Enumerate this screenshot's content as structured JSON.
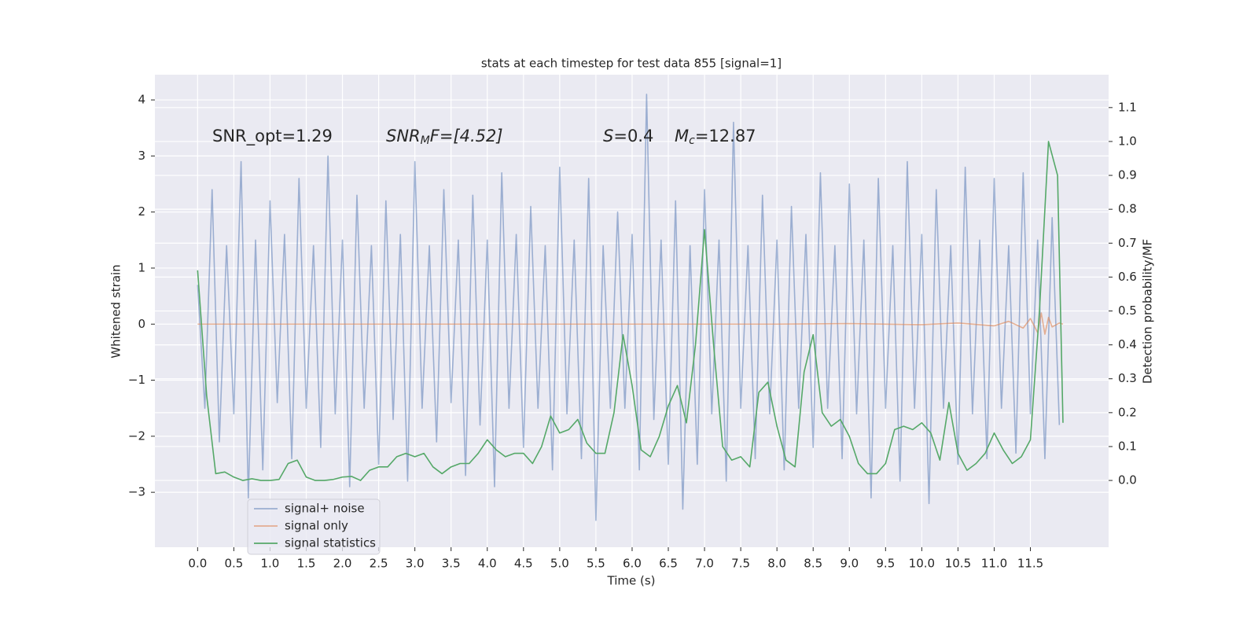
{
  "chart_data": {
    "type": "line",
    "title": "stats at each timestep for test data 855 [signal=1]",
    "xlabel": "Time (s)",
    "ylabel": "Whitened strain",
    "y2label": "Detection probability/MF",
    "annotations": {
      "snr_opt": "SNR_opt=1.29",
      "snr_mf": [
        "SNR",
        "M",
        "F=[4.52]"
      ],
      "s": [
        "S",
        "=0.4"
      ],
      "mc": [
        "M",
        "c",
        "=12.87"
      ]
    },
    "xlim": [
      -0.59,
      12.58
    ],
    "ylim": [
      -3.98,
      4.45
    ],
    "y2lim": [
      -0.197,
      1.197
    ],
    "xticks": [
      {
        "value": 0,
        "label": "0.0"
      },
      0.5,
      {
        "value": 1,
        "label": "1.0"
      },
      1.5,
      {
        "value": 2,
        "label": "2.0"
      },
      2.5,
      {
        "value": 3,
        "label": "3.0"
      },
      3.5,
      {
        "value": 4,
        "label": "4.0"
      },
      4.5,
      {
        "value": 5,
        "label": "5.0"
      },
      5.5,
      {
        "value": 6,
        "label": "6.0"
      },
      6.5,
      {
        "value": 7,
        "label": "7.0"
      },
      7.5,
      {
        "value": 8,
        "label": "8.0"
      },
      8.5,
      {
        "value": 9,
        "label": "9.0"
      },
      9.5,
      {
        "value": 10,
        "label": "10.0"
      },
      10.5,
      {
        "value": 11,
        "label": "11.0"
      },
      11.5
    ],
    "yticks": [
      {
        "value": -3,
        "label": "−3"
      },
      {
        "value": -2,
        "label": "−2"
      },
      {
        "value": -1,
        "label": "−1"
      },
      0,
      1,
      2,
      3,
      4
    ],
    "y2ticks": [
      {
        "value": 0,
        "label": "0.0"
      },
      0.1,
      0.2,
      0.3,
      0.4,
      0.5,
      0.6,
      0.7,
      0.8,
      0.9,
      {
        "value": 1,
        "label": "1.0"
      },
      1.1
    ],
    "grid": true,
    "legend": "lower left",
    "series": [
      {
        "name": "signal+ noise",
        "color": "#4c72b0",
        "opacity": 0.5,
        "x": [
          0,
          0.1,
          0.2,
          0.3,
          0.4,
          0.5,
          0.6,
          0.7,
          0.8,
          0.9,
          1,
          1.1,
          1.2,
          1.3,
          1.4,
          1.5,
          1.6,
          1.7,
          1.8,
          1.9,
          2,
          2.1,
          2.2,
          2.3,
          2.4,
          2.5,
          2.6,
          2.7,
          2.8,
          2.9,
          3,
          3.1,
          3.2,
          3.3,
          3.4,
          3.5,
          3.6,
          3.7,
          3.8,
          3.9,
          4,
          4.1,
          4.2,
          4.3,
          4.4,
          4.5,
          4.6,
          4.7,
          4.8,
          4.9,
          5,
          5.1,
          5.2,
          5.3,
          5.4,
          5.5,
          5.6,
          5.7,
          5.8,
          5.9,
          6,
          6.1,
          6.2,
          6.3,
          6.4,
          6.5,
          6.6,
          6.7,
          6.8,
          6.9,
          7,
          7.1,
          7.2,
          7.3,
          7.4,
          7.5,
          7.6,
          7.7,
          7.8,
          7.9,
          8,
          8.1,
          8.2,
          8.3,
          8.4,
          8.5,
          8.6,
          8.7,
          8.8,
          8.9,
          9,
          9.1,
          9.2,
          9.3,
          9.4,
          9.5,
          9.6,
          9.7,
          9.8,
          9.9,
          10,
          10.1,
          10.2,
          10.3,
          10.4,
          10.5,
          10.6,
          10.7,
          10.8,
          10.9,
          11,
          11.1,
          11.2,
          11.3,
          11.4,
          11.5,
          11.6,
          11.7,
          11.8,
          11.9
        ],
        "values": [
          0.7,
          -1.5,
          2.4,
          -2.1,
          1.4,
          -1.6,
          2.9,
          -3.1,
          1.5,
          -2.6,
          2.2,
          -1.4,
          1.6,
          -2.4,
          2.6,
          -1.5,
          1.4,
          -2.2,
          3.0,
          -1.6,
          1.5,
          -2.9,
          2.3,
          -1.5,
          1.4,
          -2.5,
          2.2,
          -1.7,
          1.6,
          -2.8,
          2.9,
          -1.5,
          1.4,
          -2.1,
          2.4,
          -1.4,
          1.5,
          -2.7,
          2.3,
          -1.8,
          1.5,
          -2.9,
          2.7,
          -1.5,
          1.6,
          -2.2,
          2.1,
          -1.5,
          1.4,
          -2.6,
          2.8,
          -1.6,
          1.5,
          -2.4,
          2.6,
          -3.5,
          1.4,
          -1.5,
          2.0,
          -1.5,
          1.6,
          -2.6,
          4.1,
          -1.7,
          1.5,
          -2.5,
          2.2,
          -3.3,
          1.4,
          -2.5,
          2.4,
          -1.6,
          1.5,
          -2.8,
          3.6,
          -1.5,
          1.4,
          -2.4,
          2.3,
          -1.6,
          1.5,
          -2.6,
          2.1,
          -1.5,
          1.6,
          -2.2,
          2.7,
          -1.5,
          1.4,
          -2.4,
          2.5,
          -1.6,
          1.5,
          -3.1,
          2.6,
          -1.5,
          1.4,
          -2.8,
          2.9,
          -1.5,
          1.6,
          -3.2,
          2.4,
          -1.5,
          1.4,
          -2.5,
          2.8,
          -1.6,
          1.5,
          -2.4,
          2.6,
          -1.5,
          1.4,
          -2.3,
          2.7,
          -1.6,
          1.5,
          -2.4,
          1.9,
          -1.8
        ]
      },
      {
        "name": "signal only",
        "color": "#dd8452",
        "opacity": 0.6,
        "x": [
          0,
          2,
          4,
          6,
          8,
          9,
          10,
          10.5,
          11,
          11.2,
          11.4,
          11.5,
          11.6,
          11.65,
          11.7,
          11.75,
          11.8,
          11.9,
          11.95
        ],
        "values": [
          0,
          0,
          0,
          0,
          0,
          0.01,
          -0.01,
          0.02,
          -0.03,
          0.05,
          -0.07,
          0.1,
          -0.15,
          0.2,
          -0.18,
          0.12,
          -0.05,
          0.02,
          0
        ]
      },
      {
        "name": "signal statistics",
        "color": "#55a868",
        "opacity": 1,
        "axis": "y2",
        "x": [
          0,
          0.125,
          0.25,
          0.375,
          0.5,
          0.625,
          0.75,
          0.875,
          1,
          1.125,
          1.25,
          1.375,
          1.5,
          1.625,
          1.75,
          1.875,
          2,
          2.125,
          2.25,
          2.375,
          2.5,
          2.625,
          2.75,
          2.875,
          3,
          3.125,
          3.25,
          3.375,
          3.5,
          3.625,
          3.75,
          3.875,
          4,
          4.125,
          4.25,
          4.375,
          4.5,
          4.625,
          4.75,
          4.875,
          5,
          5.125,
          5.25,
          5.375,
          5.5,
          5.625,
          5.75,
          5.875,
          6,
          6.125,
          6.25,
          6.375,
          6.5,
          6.625,
          6.75,
          6.875,
          7,
          7.125,
          7.25,
          7.375,
          7.5,
          7.625,
          7.75,
          7.875,
          8,
          8.125,
          8.25,
          8.375,
          8.5,
          8.625,
          8.75,
          8.875,
          9,
          9.125,
          9.25,
          9.375,
          9.5,
          9.625,
          9.75,
          9.875,
          10,
          10.125,
          10.25,
          10.375,
          10.5,
          10.625,
          10.75,
          10.875,
          11,
          11.125,
          11.25,
          11.375,
          11.5,
          11.625,
          11.75,
          11.875,
          11.95
        ],
        "values": [
          0.62,
          0.25,
          0.02,
          0.025,
          0.01,
          0.0,
          0.005,
          0.0,
          0.0,
          0.003,
          0.05,
          0.06,
          0.01,
          0.0,
          0.0,
          0.003,
          0.01,
          0.012,
          0.0,
          0.03,
          0.04,
          0.04,
          0.07,
          0.08,
          0.07,
          0.08,
          0.04,
          0.02,
          0.04,
          0.05,
          0.05,
          0.08,
          0.12,
          0.09,
          0.07,
          0.08,
          0.08,
          0.05,
          0.1,
          0.19,
          0.14,
          0.15,
          0.18,
          0.11,
          0.08,
          0.08,
          0.2,
          0.43,
          0.28,
          0.09,
          0.07,
          0.13,
          0.22,
          0.28,
          0.17,
          0.4,
          0.74,
          0.4,
          0.1,
          0.06,
          0.07,
          0.04,
          0.26,
          0.29,
          0.16,
          0.06,
          0.04,
          0.32,
          0.43,
          0.2,
          0.16,
          0.18,
          0.13,
          0.05,
          0.02,
          0.02,
          0.05,
          0.15,
          0.16,
          0.15,
          0.17,
          0.14,
          0.06,
          0.23,
          0.08,
          0.03,
          0.05,
          0.08,
          0.14,
          0.09,
          0.05,
          0.07,
          0.12,
          0.5,
          1.0,
          0.9,
          0.17
        ]
      }
    ]
  }
}
